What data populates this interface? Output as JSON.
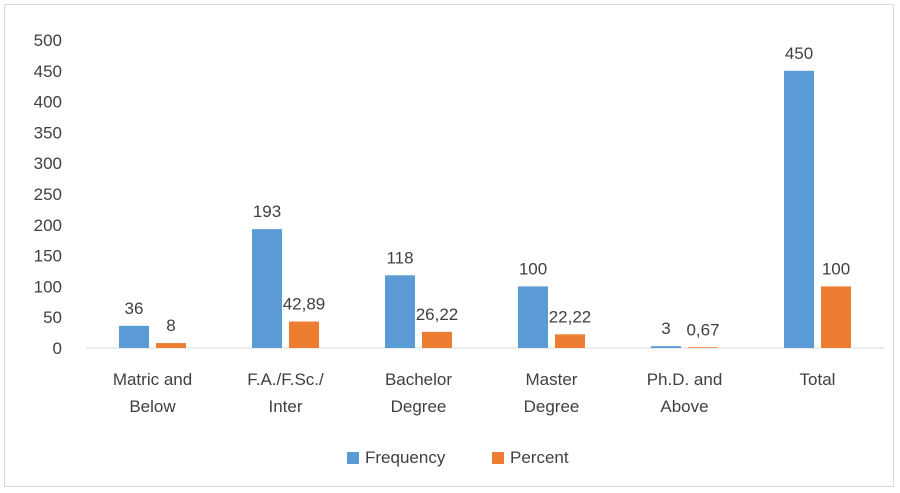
{
  "chart_data": {
    "type": "bar",
    "categories": [
      [
        "Matric and",
        "Below"
      ],
      [
        "F.A./F.Sc./",
        "Inter"
      ],
      [
        "Bachelor",
        "Degree"
      ],
      [
        "Master",
        "Degree"
      ],
      [
        "Ph.D. and",
        "Above"
      ],
      [
        "Total"
      ]
    ],
    "series": [
      {
        "name": "Frequency",
        "color": "#5b9bd5",
        "values": [
          36,
          193,
          118,
          100,
          3,
          450
        ],
        "labels": [
          "36",
          "193",
          "118",
          "100",
          "3",
          "450"
        ]
      },
      {
        "name": "Percent",
        "color": "#ed7d31",
        "values": [
          8,
          42.89,
          26.22,
          22.22,
          0.67,
          100
        ],
        "labels": [
          "8",
          "42,89",
          "26,22",
          "22,22",
          "0,67",
          "100"
        ]
      }
    ],
    "ylim": [
      0,
      500
    ],
    "yticks": [
      0,
      50,
      100,
      150,
      200,
      250,
      300,
      350,
      400,
      450,
      500
    ],
    "grid": false,
    "legend_position": "bottom"
  }
}
